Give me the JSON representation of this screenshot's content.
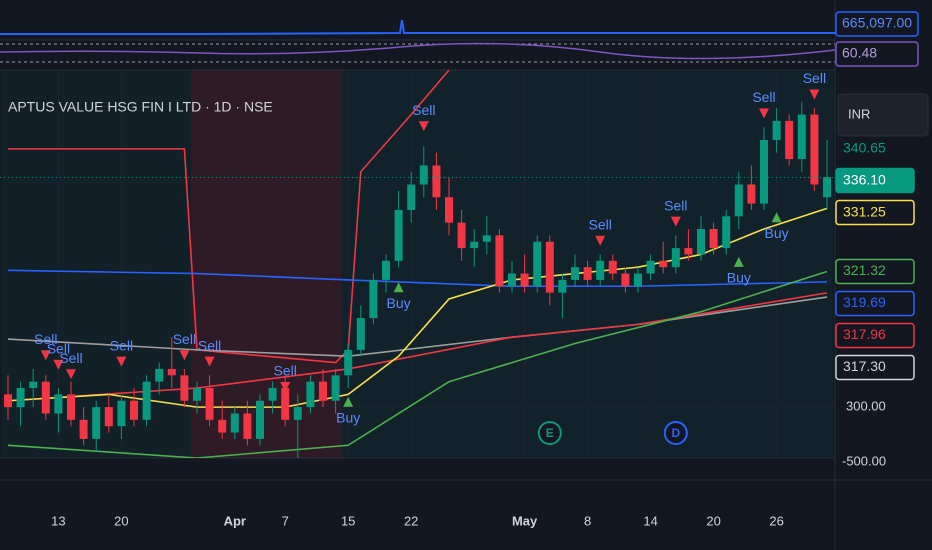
{
  "chart_data": {
    "type": "candlestick",
    "title": "APTUS VALUE HSG FIN I LTD · 1D · NSE",
    "currency": "INR",
    "categories": [
      null,
      null,
      null,
      null,
      "13",
      null,
      null,
      null,
      null,
      "20",
      null,
      null,
      null,
      null,
      null,
      null,
      null,
      null,
      "Apr",
      null,
      null,
      null,
      "7",
      null,
      null,
      null,
      null,
      "15",
      null,
      null,
      null,
      null,
      "22",
      null,
      null,
      null,
      null,
      null,
      null,
      null,
      null,
      "May",
      null,
      null,
      null,
      null,
      "8",
      null,
      null,
      null,
      null,
      "14",
      null,
      null,
      null,
      null,
      "20",
      null,
      null,
      null,
      null,
      "26",
      null,
      null,
      null,
      null
    ],
    "open": [
      302,
      300,
      303,
      304,
      299,
      302,
      298,
      295,
      300,
      297,
      301,
      298,
      304,
      306,
      305,
      301,
      303,
      298,
      296,
      299,
      295,
      301,
      303,
      298,
      300,
      304,
      301,
      305,
      309,
      314,
      320,
      323,
      331,
      335,
      338,
      333,
      329,
      325,
      326,
      327,
      319,
      321,
      319,
      326,
      318,
      320,
      322,
      320,
      323,
      321,
      319,
      321,
      323,
      322,
      325,
      324,
      328,
      325,
      330,
      335,
      332,
      342,
      345,
      339,
      346,
      333
    ],
    "high": [
      305,
      304,
      306,
      305,
      303,
      304,
      300,
      301,
      302,
      302,
      303,
      305,
      307,
      311,
      306,
      304,
      305,
      301,
      300,
      301,
      302,
      304,
      305,
      302,
      305,
      306,
      306,
      310,
      316,
      321,
      324,
      334,
      337,
      341,
      340,
      336,
      331,
      328,
      330,
      328,
      323,
      324,
      327,
      327,
      321,
      324,
      323,
      324,
      324,
      322,
      322,
      324,
      326,
      327,
      328,
      330,
      329,
      331,
      337,
      338,
      344,
      347,
      346,
      348,
      347,
      342
    ],
    "low": [
      298,
      297,
      300,
      298,
      296,
      297,
      294,
      293,
      296,
      295,
      297,
      297,
      302,
      303,
      300,
      299,
      297,
      295,
      295,
      294,
      294,
      299,
      297,
      292,
      299,
      300,
      299,
      303,
      308,
      313,
      318,
      322,
      329,
      333,
      331,
      327,
      323,
      322,
      324,
      318,
      318,
      318,
      318,
      316,
      314,
      319,
      319,
      319,
      320,
      318,
      318,
      320,
      321,
      321,
      323,
      323,
      324,
      324,
      328,
      331,
      331,
      340,
      338,
      337,
      334,
      331
    ],
    "close": [
      300,
      303,
      304,
      299,
      302,
      298,
      295,
      300,
      297,
      301,
      298,
      304,
      306,
      305,
      301,
      303,
      298,
      296,
      299,
      295,
      301,
      303,
      298,
      300,
      304,
      301,
      305,
      309,
      314,
      320,
      323,
      331,
      335,
      338,
      333,
      329,
      325,
      326,
      327,
      319,
      321,
      319,
      326,
      318,
      320,
      322,
      320,
      323,
      321,
      319,
      321,
      323,
      322,
      325,
      324,
      328,
      325,
      330,
      335,
      332,
      342,
      345,
      339,
      346,
      335,
      336.1
    ],
    "up_color": "#089981",
    "down_color": "#f23645",
    "ylim": [
      292,
      353
    ],
    "yticks": [
      {
        "value": 300,
        "label": "300.00"
      }
    ],
    "overlays": [
      {
        "color": "#f23645",
        "x": [
          0,
          14,
          15,
          26,
          27,
          28,
          32,
          35
        ],
        "values": [
          340.6,
          340.6,
          309,
          307,
          309,
          337,
          346,
          353
        ]
      },
      {
        "color": "#2962ff",
        "x": [
          0,
          15,
          27,
          40,
          50,
          65
        ],
        "values": [
          321.5,
          321,
          320,
          319,
          319,
          319.69
        ]
      },
      {
        "color": "#9e9e9e",
        "x": [
          0,
          15,
          27,
          40,
          50,
          65
        ],
        "values": [
          310.7,
          309,
          308,
          311,
          313,
          317.3
        ]
      },
      {
        "color": "#f23645",
        "x": [
          0,
          15,
          27,
          40,
          50,
          65
        ],
        "values": [
          301,
          303,
          306,
          311,
          313,
          317.96
        ]
      },
      {
        "color": "#4caf50",
        "x": [
          0,
          15,
          27,
          35,
          45,
          55,
          65
        ],
        "values": [
          294,
          292,
          294,
          304,
          310,
          315,
          321.32
        ]
      },
      {
        "color": "#f7e04b",
        "x": [
          0,
          8,
          15,
          22,
          27,
          31,
          35,
          40,
          45,
          50,
          55,
          60,
          65
        ],
        "values": [
          301,
          302,
          300,
          300,
          302,
          308,
          317,
          320,
          321,
          322,
          324,
          328,
          331.25
        ]
      }
    ],
    "regions": [
      {
        "from": 0,
        "to": 14,
        "color": "rgba(8,153,129,0.07)"
      },
      {
        "from": 15,
        "to": 26,
        "color": "rgba(242,54,69,0.13)"
      },
      {
        "from": 27,
        "to": 65,
        "color": "rgba(8,153,129,0.09)"
      }
    ],
    "signals": [
      {
        "label": "Sell",
        "index": 3,
        "value": 308
      },
      {
        "label": "Sell",
        "index": 4,
        "value": 306.5
      },
      {
        "label": "Sell",
        "index": 5,
        "value": 305
      },
      {
        "label": "Sell",
        "index": 9,
        "value": 307
      },
      {
        "label": "Sell",
        "index": 14,
        "value": 308
      },
      {
        "label": "Sell",
        "index": 16,
        "value": 307
      },
      {
        "label": "Sell",
        "index": 22,
        "value": 303
      },
      {
        "label": "Sell",
        "index": 33,
        "value": 344
      },
      {
        "label": "Sell",
        "index": 47,
        "value": 326
      },
      {
        "label": "Sell",
        "index": 53,
        "value": 329
      },
      {
        "label": "Sell",
        "index": 60,
        "value": 346
      },
      {
        "label": "Sell",
        "index": 64,
        "value": 349
      },
      {
        "label": "Buy",
        "index": 27,
        "value": 301
      },
      {
        "label": "Buy",
        "index": 31,
        "value": 319
      },
      {
        "label": "Buy",
        "index": 58,
        "value": 323
      },
      {
        "label": "Buy",
        "index": 61,
        "value": 330
      }
    ],
    "events": [
      {
        "label": "E",
        "index": 43
      },
      {
        "label": "D",
        "index": 53
      }
    ],
    "price_labels": [
      {
        "value": 340.65,
        "label": "340.65",
        "color": "#089981",
        "boxed": false
      },
      {
        "value": 336.1,
        "label": "336.10",
        "color": "#089981",
        "boxed": true,
        "filled": true
      },
      {
        "value": 331.25,
        "label": "331.25",
        "color": "#f7e04b",
        "boxed": true,
        "filled": false
      },
      {
        "value": 321.32,
        "label": "321.32",
        "color": "#4caf50",
        "boxed": true,
        "filled": false
      },
      {
        "value": 319.69,
        "label": "319.69",
        "color": "#2962ff",
        "boxed": true,
        "filled": false
      },
      {
        "value": 317.96,
        "label": "317.96",
        "color": "#f23645",
        "boxed": true,
        "filled": false
      },
      {
        "value": 317.3,
        "label": "317.30",
        "color": "#d1d4dc",
        "boxed": true,
        "filled": false
      }
    ],
    "top_indicators": [
      {
        "value": 665097,
        "label": "665,097.00",
        "color": "#2962ff"
      },
      {
        "value": 60.48,
        "label": "60.48",
        "color": "#7e57c2"
      }
    ],
    "lower_pane_tick": {
      "value": -500,
      "label": "-500.00"
    }
  }
}
